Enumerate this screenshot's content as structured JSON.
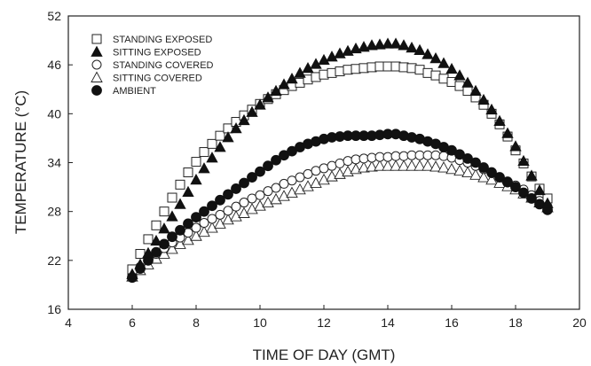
{
  "chart_data": {
    "type": "scatter",
    "title": "",
    "xlabel": "TIME OF DAY (GMT)",
    "ylabel": "TEMPERATURE (°C)",
    "xlim": [
      4,
      20
    ],
    "ylim": [
      16,
      52
    ],
    "xticks": [
      4,
      6,
      8,
      10,
      12,
      14,
      16,
      18,
      20
    ],
    "yticks": [
      16,
      22,
      28,
      34,
      40,
      46,
      52
    ],
    "legend_position": "top-left",
    "grid": false,
    "series": [
      {
        "name": "STANDING EXPOSED",
        "marker": "square-open",
        "x": [
          6.0,
          6.25,
          6.5,
          6.75,
          7.0,
          7.25,
          7.5,
          7.75,
          8.0,
          8.25,
          8.5,
          8.75,
          9.0,
          9.25,
          9.5,
          9.75,
          10.0,
          10.25,
          10.5,
          10.75,
          11.0,
          11.25,
          11.5,
          11.75,
          12.0,
          12.25,
          12.5,
          12.75,
          13.0,
          13.25,
          13.5,
          13.75,
          14.0,
          14.25,
          14.5,
          14.75,
          15.0,
          15.25,
          15.5,
          15.75,
          16.0,
          16.25,
          16.5,
          16.75,
          17.0,
          17.25,
          17.5,
          17.75,
          18.0,
          18.25,
          18.5,
          18.75,
          19.0
        ],
        "y": [
          20.9,
          22.8,
          24.6,
          26.3,
          28.0,
          29.7,
          31.3,
          32.8,
          34.1,
          35.3,
          36.3,
          37.3,
          38.2,
          39.0,
          39.8,
          40.5,
          41.2,
          41.8,
          42.4,
          42.9,
          43.4,
          43.8,
          44.2,
          44.5,
          44.8,
          45.0,
          45.2,
          45.4,
          45.5,
          45.6,
          45.7,
          45.8,
          45.8,
          45.8,
          45.7,
          45.6,
          45.4,
          45.0,
          44.7,
          44.3,
          43.9,
          43.4,
          42.8,
          42.0,
          41.1,
          40.0,
          38.7,
          37.2,
          35.5,
          33.9,
          32.3,
          30.8,
          29.6
        ]
      },
      {
        "name": "SITTING EXPOSED",
        "marker": "triangle-filled",
        "x": [
          6.0,
          6.25,
          6.5,
          6.75,
          7.0,
          7.25,
          7.5,
          7.75,
          8.0,
          8.25,
          8.5,
          8.75,
          9.0,
          9.25,
          9.5,
          9.75,
          10.0,
          10.25,
          10.5,
          10.75,
          11.0,
          11.25,
          11.5,
          11.75,
          12.0,
          12.25,
          12.5,
          12.75,
          13.0,
          13.25,
          13.5,
          13.75,
          14.0,
          14.25,
          14.5,
          14.75,
          15.0,
          15.25,
          15.5,
          15.75,
          16.0,
          16.25,
          16.5,
          16.75,
          17.0,
          17.25,
          17.5,
          17.75,
          18.0,
          18.25,
          18.5,
          18.75,
          19.0
        ],
        "y": [
          20.3,
          21.5,
          22.9,
          24.4,
          25.9,
          27.4,
          28.9,
          30.4,
          31.9,
          33.3,
          34.6,
          35.9,
          37.1,
          38.2,
          39.2,
          40.2,
          41.1,
          42.0,
          42.8,
          43.6,
          44.3,
          45.0,
          45.6,
          46.1,
          46.6,
          47.0,
          47.4,
          47.7,
          48.0,
          48.2,
          48.4,
          48.5,
          48.6,
          48.6,
          48.4,
          48.1,
          47.8,
          47.3,
          46.8,
          46.2,
          45.5,
          44.7,
          43.8,
          42.8,
          41.7,
          40.5,
          39.1,
          37.6,
          36.0,
          34.2,
          32.4,
          30.6,
          29.0
        ]
      },
      {
        "name": "STANDING COVERED",
        "marker": "circle-open",
        "x": [
          6.0,
          6.25,
          6.5,
          6.75,
          7.0,
          7.25,
          7.5,
          7.75,
          8.0,
          8.25,
          8.5,
          8.75,
          9.0,
          9.25,
          9.5,
          9.75,
          10.0,
          10.25,
          10.5,
          10.75,
          11.0,
          11.25,
          11.5,
          11.75,
          12.0,
          12.25,
          12.5,
          12.75,
          13.0,
          13.25,
          13.5,
          13.75,
          14.0,
          14.25,
          14.5,
          14.75,
          15.0,
          15.25,
          15.5,
          15.75,
          16.0,
          16.25,
          16.5,
          16.75,
          17.0,
          17.25,
          17.5,
          17.75,
          18.0,
          18.25,
          18.5,
          18.75,
          19.0
        ],
        "y": [
          20.3,
          21.2,
          22.0,
          22.8,
          23.5,
          24.2,
          24.8,
          25.4,
          26.0,
          26.6,
          27.1,
          27.6,
          28.1,
          28.6,
          29.1,
          29.6,
          30.0,
          30.5,
          30.9,
          31.4,
          31.8,
          32.2,
          32.6,
          33.0,
          33.3,
          33.6,
          33.9,
          34.2,
          34.4,
          34.5,
          34.6,
          34.7,
          34.7,
          34.8,
          34.8,
          34.9,
          34.9,
          34.9,
          34.9,
          34.8,
          34.6,
          34.3,
          34.0,
          33.6,
          33.2,
          32.7,
          32.2,
          31.7,
          31.2,
          30.7,
          30.0,
          29.3,
          28.6
        ]
      },
      {
        "name": "SITTING COVERED",
        "marker": "triangle-open",
        "x": [
          6.0,
          6.25,
          6.5,
          6.75,
          7.0,
          7.25,
          7.5,
          7.75,
          8.0,
          8.25,
          8.5,
          8.75,
          9.0,
          9.25,
          9.5,
          9.75,
          10.0,
          10.25,
          10.5,
          10.75,
          11.0,
          11.25,
          11.5,
          11.75,
          12.0,
          12.25,
          12.5,
          12.75,
          13.0,
          13.25,
          13.5,
          13.75,
          14.0,
          14.25,
          14.5,
          14.75,
          15.0,
          15.25,
          15.5,
          15.75,
          16.0,
          16.25,
          16.5,
          16.75,
          17.0,
          17.25,
          17.5,
          17.75,
          18.0,
          18.25,
          18.5,
          18.75,
          19.0
        ],
        "y": [
          20.0,
          20.8,
          21.5,
          22.2,
          22.8,
          23.4,
          24.0,
          24.5,
          25.0,
          25.5,
          26.0,
          26.5,
          27.0,
          27.4,
          27.8,
          28.3,
          28.7,
          29.1,
          29.5,
          29.9,
          30.3,
          30.7,
          31.1,
          31.5,
          31.9,
          32.3,
          32.6,
          32.9,
          33.2,
          33.4,
          33.5,
          33.6,
          33.6,
          33.6,
          33.6,
          33.6,
          33.6,
          33.6,
          33.5,
          33.4,
          33.2,
          33.0,
          32.8,
          32.5,
          32.2,
          31.9,
          31.5,
          31.1,
          30.7,
          30.2,
          29.7,
          29.1,
          28.5
        ]
      },
      {
        "name": "AMBIENT",
        "marker": "circle-filled",
        "x": [
          6.0,
          6.25,
          6.5,
          6.75,
          7.0,
          7.25,
          7.5,
          7.75,
          8.0,
          8.25,
          8.5,
          8.75,
          9.0,
          9.25,
          9.5,
          9.75,
          10.0,
          10.25,
          10.5,
          10.75,
          11.0,
          11.25,
          11.5,
          11.75,
          12.0,
          12.25,
          12.5,
          12.75,
          13.0,
          13.25,
          13.5,
          13.75,
          14.0,
          14.25,
          14.5,
          14.75,
          15.0,
          15.25,
          15.5,
          15.75,
          16.0,
          16.25,
          16.5,
          16.75,
          17.0,
          17.25,
          17.5,
          17.75,
          18.0,
          18.25,
          18.5,
          18.75,
          19.0
        ],
        "y": [
          19.9,
          21.0,
          22.0,
          23.0,
          24.0,
          24.9,
          25.7,
          26.5,
          27.3,
          28.0,
          28.7,
          29.4,
          30.1,
          30.8,
          31.5,
          32.2,
          32.9,
          33.6,
          34.3,
          34.9,
          35.4,
          35.9,
          36.3,
          36.6,
          36.9,
          37.1,
          37.2,
          37.3,
          37.3,
          37.3,
          37.3,
          37.4,
          37.5,
          37.5,
          37.3,
          37.1,
          36.9,
          36.6,
          36.3,
          35.9,
          35.5,
          35.0,
          34.5,
          34.0,
          33.4,
          32.8,
          32.2,
          31.6,
          31.0,
          30.3,
          29.6,
          28.9,
          28.2
        ]
      }
    ]
  }
}
